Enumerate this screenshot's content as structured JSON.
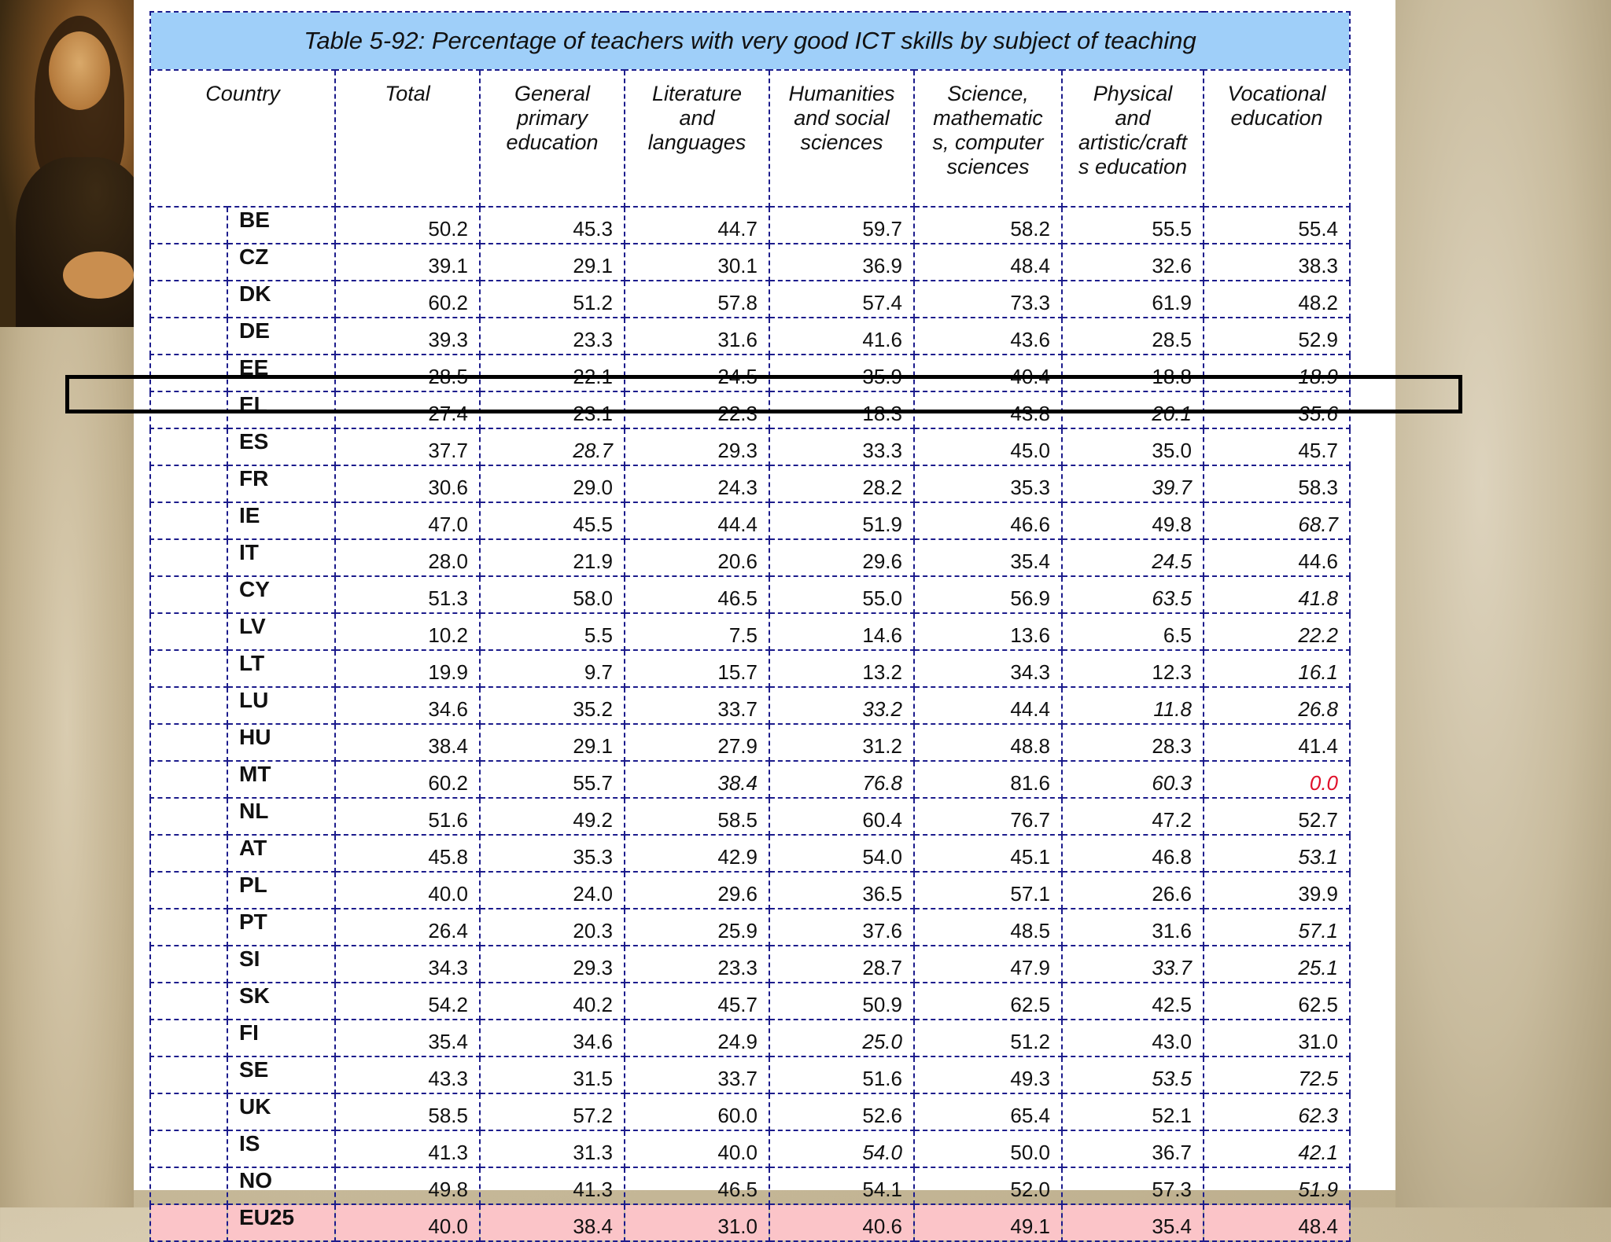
{
  "table": {
    "title": "Table 5-92: Percentage of teachers with very good ICT skills by subject of teaching",
    "headers": [
      "Country",
      "Total",
      "General\nprimary\neducation",
      "Literature\nand\nlanguages",
      "Humanities\nand social\nsciences",
      "Science,\nmathematic\ns, computer\nsciences",
      "Physical\nand\nartistic/craft\ns education",
      "Vocational\neducation"
    ],
    "rows": [
      {
        "code": "BE",
        "values": [
          "50.2",
          "45.3",
          "44.7",
          "59.7",
          "58.2",
          "55.5",
          "55.4"
        ]
      },
      {
        "code": "CZ",
        "values": [
          "39.1",
          "29.1",
          "30.1",
          "36.9",
          "48.4",
          "32.6",
          "38.3"
        ]
      },
      {
        "code": "DK",
        "values": [
          "60.2",
          "51.2",
          "57.8",
          "57.4",
          "73.3",
          "61.9",
          "48.2"
        ]
      },
      {
        "code": "DE",
        "values": [
          "39.3",
          "23.3",
          "31.6",
          "41.6",
          "43.6",
          "28.5",
          "52.9"
        ]
      },
      {
        "code": "EE",
        "values": [
          "28.5",
          "22.1",
          "24.5",
          "35.9",
          "40.4",
          "18.8",
          "18.9"
        ]
      },
      {
        "code": "EL",
        "values": [
          "27.4",
          "23.1",
          "22.3",
          "18.3",
          "43.8",
          "20.1",
          "35.6"
        ]
      },
      {
        "code": "ES",
        "values": [
          "37.7",
          "28.7",
          "29.3",
          "33.3",
          "45.0",
          "35.0",
          "45.7"
        ]
      },
      {
        "code": "FR",
        "values": [
          "30.6",
          "29.0",
          "24.3",
          "28.2",
          "35.3",
          "39.7",
          "58.3"
        ]
      },
      {
        "code": "IE",
        "values": [
          "47.0",
          "45.5",
          "44.4",
          "51.9",
          "46.6",
          "49.8",
          "68.7"
        ]
      },
      {
        "code": "IT",
        "values": [
          "28.0",
          "21.9",
          "20.6",
          "29.6",
          "35.4",
          "24.5",
          "44.6"
        ]
      },
      {
        "code": "CY",
        "values": [
          "51.3",
          "58.0",
          "46.5",
          "55.0",
          "56.9",
          "63.5",
          "41.8"
        ]
      },
      {
        "code": "LV",
        "values": [
          "10.2",
          "5.5",
          "7.5",
          "14.6",
          "13.6",
          "6.5",
          "22.2"
        ]
      },
      {
        "code": "LT",
        "values": [
          "19.9",
          "9.7",
          "15.7",
          "13.2",
          "34.3",
          "12.3",
          "16.1"
        ]
      },
      {
        "code": "LU",
        "values": [
          "34.6",
          "35.2",
          "33.7",
          "33.2",
          "44.4",
          "11.8",
          "26.8"
        ]
      },
      {
        "code": "HU",
        "values": [
          "38.4",
          "29.1",
          "27.9",
          "31.2",
          "48.8",
          "28.3",
          "41.4"
        ]
      },
      {
        "code": "MT",
        "values": [
          "60.2",
          "55.7",
          "38.4",
          "76.8",
          "81.6",
          "60.3",
          "0.0"
        ]
      },
      {
        "code": "NL",
        "values": [
          "51.6",
          "49.2",
          "58.5",
          "60.4",
          "76.7",
          "47.2",
          "52.7"
        ]
      },
      {
        "code": "AT",
        "values": [
          "45.8",
          "35.3",
          "42.9",
          "54.0",
          "45.1",
          "46.8",
          "53.1"
        ]
      },
      {
        "code": "PL",
        "values": [
          "40.0",
          "24.0",
          "29.6",
          "36.5",
          "57.1",
          "26.6",
          "39.9"
        ]
      },
      {
        "code": "PT",
        "values": [
          "26.4",
          "20.3",
          "25.9",
          "37.6",
          "48.5",
          "31.6",
          "57.1"
        ]
      },
      {
        "code": "SI",
        "values": [
          "34.3",
          "29.3",
          "23.3",
          "28.7",
          "47.9",
          "33.7",
          "25.1"
        ]
      },
      {
        "code": "SK",
        "values": [
          "54.2",
          "40.2",
          "45.7",
          "50.9",
          "62.5",
          "42.5",
          "62.5"
        ]
      },
      {
        "code": "FI",
        "values": [
          "35.4",
          "34.6",
          "24.9",
          "25.0",
          "51.2",
          "43.0",
          "31.0"
        ]
      },
      {
        "code": "SE",
        "values": [
          "43.3",
          "31.5",
          "33.7",
          "51.6",
          "49.3",
          "53.5",
          "72.5"
        ]
      },
      {
        "code": "UK",
        "values": [
          "58.5",
          "57.2",
          "60.0",
          "52.6",
          "65.4",
          "52.1",
          "62.3"
        ]
      },
      {
        "code": "IS",
        "values": [
          "41.3",
          "31.3",
          "40.0",
          "54.0",
          "50.0",
          "36.7",
          "42.1"
        ]
      },
      {
        "code": "NO",
        "values": [
          "49.8",
          "41.3",
          "46.5",
          "54.1",
          "52.0",
          "57.3",
          "51.9"
        ]
      },
      {
        "code": "EU25",
        "values": [
          "40.0",
          "38.4",
          "31.0",
          "40.6",
          "49.1",
          "35.4",
          "48.4"
        ]
      }
    ],
    "italic_cells": {
      "EE": [
        6
      ],
      "EL": [
        5,
        6
      ],
      "ES": [
        1
      ],
      "FR": [
        5
      ],
      "IE": [
        6
      ],
      "IT": [
        5
      ],
      "CY": [
        5,
        6
      ],
      "LV": [
        6
      ],
      "LT": [
        6
      ],
      "LU": [
        3,
        5,
        6
      ],
      "MT": [
        2,
        3,
        5,
        6
      ],
      "AT": [
        6
      ],
      "PT": [
        6
      ],
      "SI": [
        5,
        6
      ],
      "FI": [
        3
      ],
      "SE": [
        5,
        6
      ],
      "UK": [
        6
      ],
      "IS": [
        3,
        6
      ],
      "NO": [
        6
      ]
    },
    "red_cells": {
      "MT": [
        6
      ]
    },
    "highlighted_row": "EL",
    "colors": {
      "title_bg": "#9fcff9",
      "border": "#1c1c8c",
      "eu_row_bg": "#fbc4c8",
      "red_value": "#e0102a"
    }
  },
  "decor": {
    "left_image_icon": "mona-lisa-painting"
  }
}
